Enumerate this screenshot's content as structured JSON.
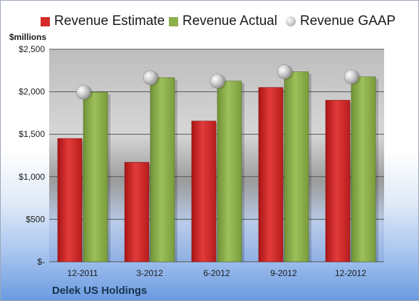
{
  "colors": {
    "estimate": "#d42a2a",
    "actual": "#8db04a",
    "gaap": "#c9c9c9",
    "company_text": "#17324f"
  },
  "legend": {
    "estimate_label": "Revenue Estimate",
    "actual_label": "Revenue Actual",
    "gaap_label": "Revenue GAAP"
  },
  "footer": {
    "company": "Delek US Holdings"
  },
  "chart_data": {
    "type": "bar",
    "title": "",
    "ylabel": "$millions",
    "xlabel": "",
    "legend_position": "top",
    "grid": true,
    "ylim": [
      0,
      2500
    ],
    "yticks": [
      0,
      500,
      1000,
      1500,
      2000,
      2500
    ],
    "ytick_labels": [
      "$-",
      "$500",
      "$1,000",
      "$1,500",
      "$2,000",
      "$2,500"
    ],
    "categories": [
      "12-2011",
      "3-2012",
      "6-2012",
      "9-2012",
      "12-2012"
    ],
    "series": [
      {
        "name": "Revenue Estimate",
        "kind": "bar",
        "values": [
          1450,
          1170,
          1655,
          2050,
          1900
        ]
      },
      {
        "name": "Revenue Actual",
        "kind": "bar",
        "values": [
          1995,
          2165,
          2125,
          2235,
          2175
        ]
      },
      {
        "name": "Revenue GAAP",
        "kind": "scatter",
        "values": [
          1995,
          2165,
          2125,
          2235,
          2175
        ]
      }
    ]
  }
}
